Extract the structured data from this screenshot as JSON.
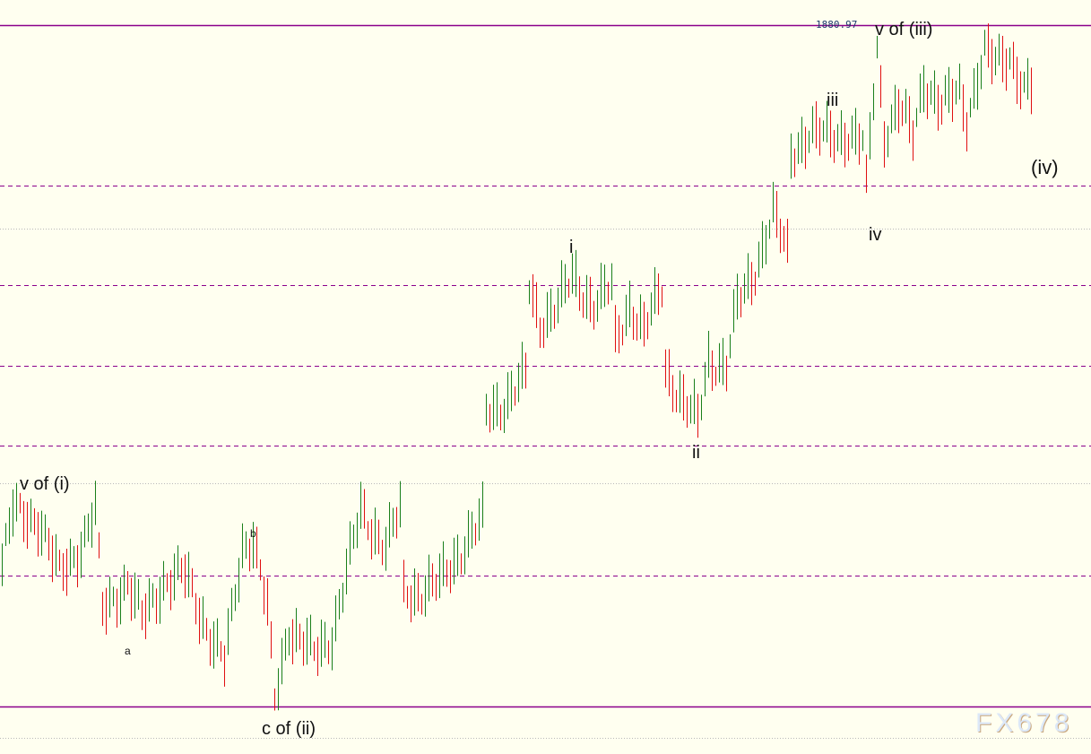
{
  "chart_data": {
    "type": "ohlc-bar",
    "instrument_price_label": "1880.97",
    "ylim": [
      1853.19,
      1881.93
    ],
    "x_bars": 288,
    "colors": {
      "up": "#1a7f1a",
      "down": "#e01010",
      "level_solid": "#8b008b",
      "level_dashed": "#8b008b",
      "grid_dotted": "#b8b8b8",
      "background": "#fffff0"
    },
    "levels": [
      {
        "price": 1880.97,
        "style": "solid"
      },
      {
        "price": 1874.85,
        "style": "dashed"
      },
      {
        "price": 1873.21,
        "style": "dotted"
      },
      {
        "price": 1871.06,
        "style": "dashed"
      },
      {
        "price": 1867.99,
        "style": "dashed"
      },
      {
        "price": 1864.94,
        "style": "dashed"
      },
      {
        "price": 1863.51,
        "style": "dotted"
      },
      {
        "price": 1859.99,
        "style": "dashed"
      },
      {
        "price": 1855.0,
        "style": "solid"
      },
      {
        "price": 1853.81,
        "style": "dotted"
      }
    ],
    "path": [
      [
        0,
        1860.4
      ],
      [
        3,
        1862.45
      ],
      [
        10,
        1862.11
      ],
      [
        16,
        1860.06
      ],
      [
        22,
        1861.08
      ],
      [
        26,
        1862.45
      ],
      [
        28,
        1858.69
      ],
      [
        35,
        1859.72
      ],
      [
        39,
        1858.35
      ],
      [
        45,
        1859.72
      ],
      [
        51,
        1860.06
      ],
      [
        57,
        1858.01
      ],
      [
        62,
        1856.64
      ],
      [
        67,
        1861.08
      ],
      [
        70,
        1861.42
      ],
      [
        74,
        1858.69
      ],
      [
        76,
        1855.27
      ],
      [
        80,
        1858.01
      ],
      [
        87,
        1856.98
      ],
      [
        92,
        1857.67
      ],
      [
        100,
        1862.45
      ],
      [
        107,
        1861.08
      ],
      [
        111,
        1862.45
      ],
      [
        112,
        1859.37
      ],
      [
        117,
        1859.37
      ],
      [
        122,
        1859.72
      ],
      [
        127,
        1860.74
      ],
      [
        134,
        1862.11
      ],
      [
        135,
        1866.21
      ],
      [
        140,
        1866.55
      ],
      [
        146,
        1867.58
      ],
      [
        147,
        1870.99
      ],
      [
        150,
        1869.63
      ],
      [
        155,
        1870.31
      ],
      [
        159,
        1871.33
      ],
      [
        165,
        1870.31
      ],
      [
        170,
        1870.99
      ],
      [
        171,
        1868.94
      ],
      [
        175,
        1870.31
      ],
      [
        179,
        1869.28
      ],
      [
        184,
        1870.99
      ],
      [
        185,
        1867.92
      ],
      [
        190,
        1866.55
      ],
      [
        194,
        1865.87
      ],
      [
        197,
        1868.26
      ],
      [
        202,
        1867.92
      ],
      [
        205,
        1870.31
      ],
      [
        210,
        1871.68
      ],
      [
        215,
        1873.73
      ],
      [
        219,
        1872.36
      ],
      [
        220,
        1876.12
      ],
      [
        225,
        1876.8
      ],
      [
        231,
        1876.8
      ],
      [
        235,
        1876.8
      ],
      [
        240,
        1876.46
      ],
      [
        241,
        1874.75
      ],
      [
        244,
        1880.22
      ],
      [
        246,
        1876.8
      ],
      [
        250,
        1877.83
      ],
      [
        254,
        1876.8
      ],
      [
        257,
        1878.85
      ],
      [
        262,
        1877.83
      ],
      [
        267,
        1878.51
      ],
      [
        269,
        1877.48
      ],
      [
        274,
        1879.88
      ],
      [
        277,
        1879.53
      ],
      [
        281,
        1879.88
      ],
      [
        285,
        1878.51
      ],
      [
        287,
        1878.51
      ]
    ]
  },
  "wave_labels": {
    "v_of_i": "v of (i)",
    "a": "a",
    "b": "b",
    "c_of_ii": "c of (ii)",
    "i": "i",
    "ii": "ii",
    "iii": "iii",
    "iv": "iv",
    "v_of_iii": "v of (iii)",
    "iv_major": "(iv)"
  },
  "watermark": "FX678"
}
